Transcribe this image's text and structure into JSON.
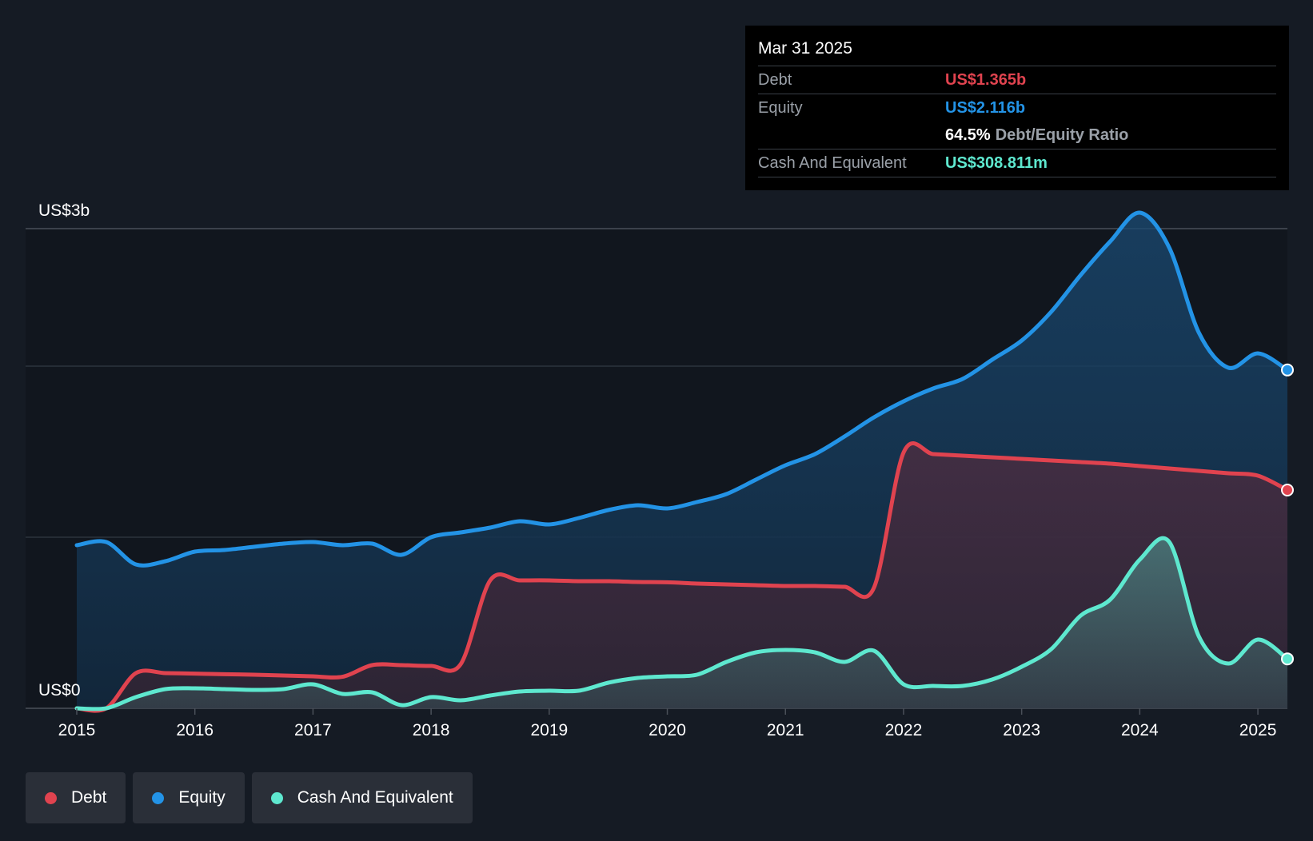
{
  "chart_data": {
    "type": "area",
    "title": "",
    "ylabel_top": "US$3b",
    "ylabel_bottom": "US$0",
    "ylim": [
      0,
      3.0
    ],
    "xlim": [
      2015.0,
      2025.25
    ],
    "x_ticks": [
      "2015",
      "2016",
      "2017",
      "2018",
      "2019",
      "2020",
      "2021",
      "2022",
      "2023",
      "2024",
      "2025"
    ],
    "gridlines": [
      0,
      1.07,
      2.14,
      3.0
    ],
    "series": [
      {
        "name": "Equity",
        "color": "#2393e6",
        "x": [
          2015.0,
          2015.25,
          2015.5,
          2015.75,
          2016.0,
          2016.25,
          2016.5,
          2016.75,
          2017.0,
          2017.25,
          2017.5,
          2017.75,
          2018.0,
          2018.25,
          2018.5,
          2018.75,
          2019.0,
          2019.25,
          2019.5,
          2019.75,
          2020.0,
          2020.25,
          2020.5,
          2020.75,
          2021.0,
          2021.25,
          2021.5,
          2021.75,
          2022.0,
          2022.25,
          2022.5,
          2022.75,
          2023.0,
          2023.25,
          2023.5,
          2023.75,
          2024.0,
          2024.25,
          2024.5,
          2024.75,
          2025.0,
          2025.25
        ],
        "values": [
          1.02,
          1.04,
          0.9,
          0.92,
          0.98,
          0.99,
          1.01,
          1.03,
          1.04,
          1.02,
          1.03,
          0.96,
          1.07,
          1.1,
          1.13,
          1.17,
          1.15,
          1.19,
          1.24,
          1.27,
          1.25,
          1.29,
          1.34,
          1.43,
          1.52,
          1.59,
          1.7,
          1.82,
          1.92,
          2.0,
          2.06,
          2.18,
          2.3,
          2.48,
          2.71,
          2.92,
          3.1,
          2.88,
          2.35,
          2.13,
          2.22,
          2.116
        ]
      },
      {
        "name": "Debt",
        "color": "#e0434f",
        "x": [
          2015.0,
          2015.25,
          2015.5,
          2015.75,
          2016.0,
          2016.25,
          2016.5,
          2016.75,
          2017.0,
          2017.25,
          2017.5,
          2017.75,
          2018.0,
          2018.25,
          2018.5,
          2018.75,
          2019.0,
          2019.25,
          2019.5,
          2019.75,
          2020.0,
          2020.25,
          2020.5,
          2020.75,
          2021.0,
          2021.25,
          2021.5,
          2021.75,
          2022.0,
          2022.25,
          2022.5,
          2022.75,
          2023.0,
          2023.25,
          2023.5,
          2023.75,
          2024.0,
          2024.25,
          2024.5,
          2024.75,
          2025.0,
          2025.25
        ],
        "values": [
          0.0,
          0.0,
          0.22,
          0.22,
          0.217,
          0.213,
          0.21,
          0.205,
          0.2,
          0.197,
          0.27,
          0.27,
          0.265,
          0.275,
          0.8,
          0.8,
          0.8,
          0.795,
          0.795,
          0.79,
          0.788,
          0.78,
          0.775,
          0.77,
          0.765,
          0.765,
          0.76,
          0.755,
          1.6,
          1.59,
          1.58,
          1.57,
          1.56,
          1.55,
          1.54,
          1.53,
          1.515,
          1.5,
          1.485,
          1.47,
          1.455,
          1.365
        ]
      },
      {
        "name": "Cash And Equivalent",
        "color": "#5ee8cf",
        "x": [
          2015.0,
          2015.25,
          2015.5,
          2015.75,
          2016.0,
          2016.25,
          2016.5,
          2016.75,
          2017.0,
          2017.25,
          2017.5,
          2017.75,
          2018.0,
          2018.25,
          2018.5,
          2018.75,
          2019.0,
          2019.25,
          2019.5,
          2019.75,
          2020.0,
          2020.25,
          2020.5,
          2020.75,
          2021.0,
          2021.25,
          2021.5,
          2021.75,
          2022.0,
          2022.25,
          2022.5,
          2022.75,
          2023.0,
          2023.25,
          2023.5,
          2023.75,
          2024.0,
          2024.25,
          2024.5,
          2024.75,
          2025.0,
          2025.25
        ],
        "values": [
          0.0,
          0.0,
          0.07,
          0.12,
          0.125,
          0.12,
          0.115,
          0.12,
          0.15,
          0.09,
          0.1,
          0.02,
          0.07,
          0.05,
          0.08,
          0.105,
          0.11,
          0.11,
          0.16,
          0.19,
          0.2,
          0.21,
          0.29,
          0.35,
          0.365,
          0.35,
          0.29,
          0.36,
          0.15,
          0.14,
          0.14,
          0.18,
          0.26,
          0.37,
          0.58,
          0.68,
          0.93,
          1.04,
          0.45,
          0.28,
          0.43,
          0.309
        ]
      }
    ],
    "legend": [
      "Debt",
      "Equity",
      "Cash And Equivalent"
    ],
    "legend_position": "bottom-left"
  },
  "tooltip": {
    "date": "Mar 31 2025",
    "debt_label": "Debt",
    "debt_value": "US$1.365b",
    "equity_label": "Equity",
    "equity_value": "US$2.116b",
    "ratio_value": "64.5%",
    "ratio_label": "Debt/Equity Ratio",
    "cash_label": "Cash And Equivalent",
    "cash_value": "US$308.811m"
  },
  "colors": {
    "debt": "#e0434f",
    "equity": "#2393e6",
    "cash": "#5ee8cf",
    "background": "#151b24"
  }
}
